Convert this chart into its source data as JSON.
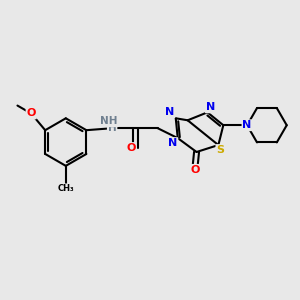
{
  "bg_color": "#e8e8e8",
  "atom_colors": {
    "C": "#000000",
    "N": "#0000ee",
    "O": "#ff0000",
    "S": "#ccaa00",
    "H": "#708090"
  },
  "bond_color": "#000000",
  "bond_lw": 1.5,
  "figsize": [
    3.0,
    3.0
  ],
  "dpi": 100
}
